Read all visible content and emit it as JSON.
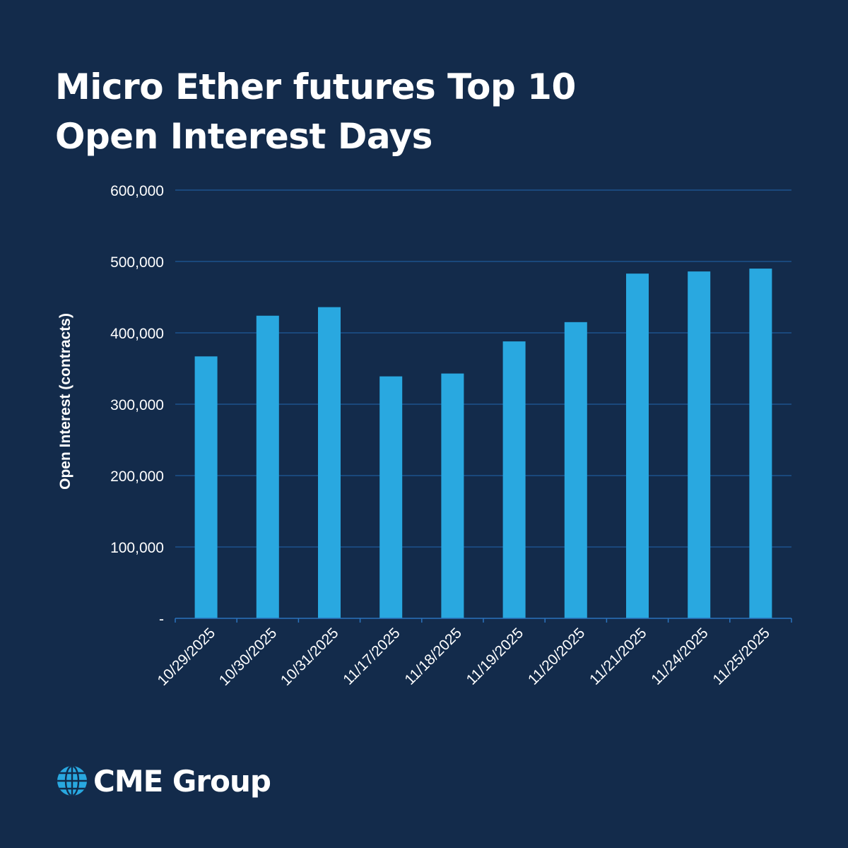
{
  "header": {
    "title_line1": "Micro Ether futures Top 10",
    "title_line2": "Open Interest Days"
  },
  "brand": {
    "name": "CME Group",
    "logo_icon": "globe-icon",
    "bar_color": "#29a8e0",
    "background_color": "#132b4b"
  },
  "chart_data": {
    "type": "bar",
    "title": "Micro Ether futures Top 10 Open Interest Days",
    "xlabel": "",
    "ylabel": "Open Interest (contracts)",
    "categories": [
      "10/29/2025",
      "10/30/2025",
      "10/31/2025",
      "11/17/2025",
      "11/18/2025",
      "11/19/2025",
      "11/20/2025",
      "11/21/2025",
      "11/24/2025",
      "11/25/2025"
    ],
    "values": [
      367000,
      424000,
      436000,
      339000,
      343000,
      388000,
      415000,
      483000,
      486000,
      490000
    ],
    "ylim": [
      0,
      600000
    ],
    "yticks": [
      0,
      100000,
      200000,
      300000,
      400000,
      500000,
      600000
    ],
    "ytick_labels": [
      "-",
      "100,000",
      "200,000",
      "300,000",
      "400,000",
      "500,000",
      "600,000"
    ],
    "grid": true,
    "legend": "none"
  }
}
